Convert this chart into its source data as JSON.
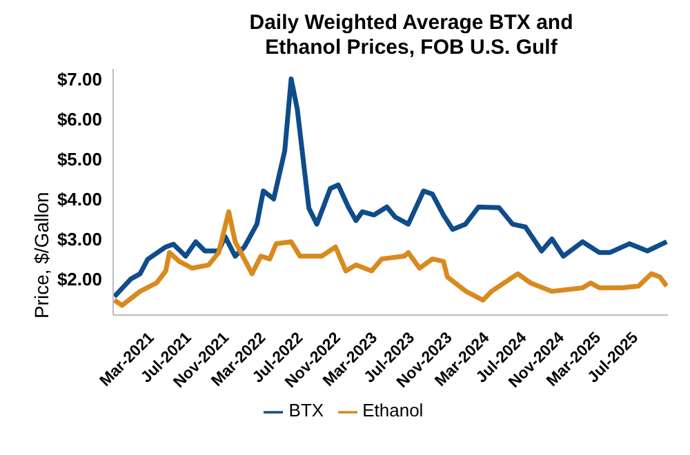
{
  "chart_data": {
    "type": "line",
    "title": "Daily Weighted Average BTX and Ethanol Prices, FOB U.S. Gulf",
    "ylabel": "Price, $/Gallon",
    "xlim": [
      "2020-11-08",
      "2025-10-27"
    ],
    "xticks": [
      {
        "value": "2021-03-01",
        "label": "Mar-2021"
      },
      {
        "value": "2021-07-01",
        "label": "Jul-2021"
      },
      {
        "value": "2021-11-01",
        "label": "Nov-2021"
      },
      {
        "value": "2022-03-01",
        "label": "Mar-2022"
      },
      {
        "value": "2022-07-01",
        "label": "Jul-2022"
      },
      {
        "value": "2022-11-01",
        "label": "Nov-2022"
      },
      {
        "value": "2023-03-01",
        "label": "Mar-2023"
      },
      {
        "value": "2023-07-01",
        "label": "Jul-2023"
      },
      {
        "value": "2023-11-01",
        "label": "Nov-2023"
      },
      {
        "value": "2024-03-01",
        "label": "Mar-2024"
      },
      {
        "value": "2024-07-01",
        "label": "Jul-2024"
      },
      {
        "value": "2024-11-01",
        "label": "Nov-2024"
      },
      {
        "value": "2025-03-01",
        "label": "Mar-2025"
      },
      {
        "value": "2025-07-01",
        "label": "Jul-2025"
      }
    ],
    "ylim": [
      1.1,
      7.25
    ],
    "yticks": [
      {
        "value": 2,
        "label": "$2.00"
      },
      {
        "value": 3,
        "label": "$3.00"
      },
      {
        "value": 4,
        "label": "$4.00"
      },
      {
        "value": 5,
        "label": "$5.00"
      },
      {
        "value": 6,
        "label": "$6.00"
      },
      {
        "value": 7,
        "label": "$7.00"
      }
    ],
    "grid": false,
    "legend": "bottom",
    "marker": "none",
    "line_style": "solid",
    "series": [
      {
        "name": "BTX",
        "color": "#0f4c8a",
        "x": [
          "2020-11-12",
          "2021-01-05",
          "2021-02-04",
          "2021-03-01",
          "2021-04-29",
          "2021-05-24",
          "2021-07-03",
          "2021-08-05",
          "2021-09-04",
          "2021-10-19",
          "2021-11-09",
          "2021-12-12",
          "2022-01-11",
          "2022-02-21",
          "2022-03-14",
          "2022-04-17",
          "2022-05-23",
          "2022-06-13",
          "2022-07-03",
          "2022-08-10",
          "2022-09-05",
          "2022-10-19",
          "2022-11-14",
          "2022-12-17",
          "2023-01-11",
          "2023-02-01",
          "2023-03-11",
          "2023-04-22",
          "2023-05-19",
          "2023-07-01",
          "2023-08-20",
          "2023-09-18",
          "2023-10-24",
          "2023-11-23",
          "2024-01-04",
          "2024-02-16",
          "2024-04-23",
          "2024-06-06",
          "2024-07-18",
          "2024-09-09",
          "2024-10-13",
          "2024-11-19",
          "2025-01-21",
          "2025-03-17",
          "2025-04-20",
          "2025-06-23",
          "2025-08-21",
          "2025-10-23"
        ],
        "values": [
          1.56,
          2.0,
          2.13,
          2.49,
          2.8,
          2.87,
          2.57,
          2.93,
          2.7,
          2.7,
          3.06,
          2.57,
          2.8,
          3.37,
          4.2,
          4.0,
          5.2,
          7.0,
          6.25,
          3.77,
          3.37,
          4.26,
          4.35,
          3.8,
          3.46,
          3.68,
          3.6,
          3.8,
          3.55,
          3.37,
          4.2,
          4.12,
          3.6,
          3.24,
          3.37,
          3.8,
          3.78,
          3.37,
          3.3,
          2.7,
          3.0,
          2.57,
          2.93,
          2.66,
          2.66,
          2.88,
          2.7,
          2.93
        ]
      },
      {
        "name": "Ethanol",
        "color": "#d98a1e",
        "x": [
          "2020-11-12",
          "2020-12-07",
          "2021-02-04",
          "2021-03-30",
          "2021-04-29",
          "2021-05-11",
          "2021-06-12",
          "2021-07-24",
          "2021-09-16",
          "2021-10-19",
          "2021-11-21",
          "2021-12-12",
          "2022-02-05",
          "2022-03-06",
          "2022-04-04",
          "2022-04-25",
          "2022-06-13",
          "2022-07-12",
          "2022-09-21",
          "2022-11-05",
          "2022-12-09",
          "2023-01-11",
          "2023-03-03",
          "2023-04-05",
          "2023-06-18",
          "2023-07-01",
          "2023-08-07",
          "2023-09-18",
          "2023-10-24",
          "2023-11-06",
          "2024-01-04",
          "2024-03-01",
          "2024-03-29",
          "2024-06-23",
          "2024-08-04",
          "2024-10-13",
          "2025-01-21",
          "2025-02-16",
          "2025-03-17",
          "2025-05-29",
          "2025-07-23",
          "2025-09-03",
          "2025-10-01",
          "2025-10-23"
        ],
        "values": [
          1.47,
          1.34,
          1.69,
          1.9,
          2.2,
          2.66,
          2.44,
          2.27,
          2.35,
          2.66,
          3.68,
          2.93,
          2.13,
          2.57,
          2.5,
          2.88,
          2.93,
          2.57,
          2.57,
          2.8,
          2.2,
          2.35,
          2.2,
          2.5,
          2.57,
          2.66,
          2.27,
          2.5,
          2.44,
          2.05,
          1.7,
          1.47,
          1.69,
          2.13,
          1.9,
          1.69,
          1.78,
          1.9,
          1.78,
          1.78,
          1.82,
          2.13,
          2.05,
          1.82
        ]
      }
    ]
  }
}
